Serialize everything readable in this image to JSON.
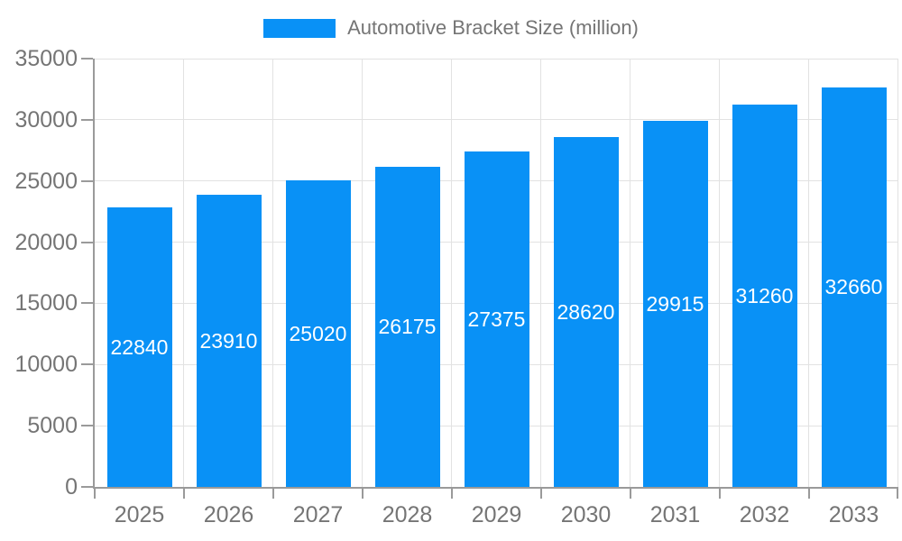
{
  "chart_data": {
    "type": "bar",
    "title": "Automotive Bracket Size (million)",
    "categories": [
      "2025",
      "2026",
      "2027",
      "2028",
      "2029",
      "2030",
      "2031",
      "2032",
      "2033"
    ],
    "values": [
      22840,
      23910,
      25020,
      26175,
      27375,
      28620,
      29915,
      31260,
      32660
    ],
    "series": [
      {
        "name": "Automotive Bracket Size (million)",
        "values": [
          22840,
          23910,
          25020,
          26175,
          27375,
          28620,
          29915,
          31260,
          32660
        ]
      }
    ],
    "xlabel": "",
    "ylabel": "",
    "ylim": [
      0,
      35000
    ],
    "yticks": [
      0,
      5000,
      10000,
      15000,
      20000,
      25000,
      30000,
      35000
    ],
    "grid": true,
    "legend_position": "top",
    "bar_labels_inside": true,
    "colors": {
      "bar": "#0991F6",
      "axis": "#9a9a9a",
      "gridline": "#e2e2e2",
      "tick_text": "#757575",
      "bar_label_text": "#ffffff",
      "background": "#ffffff"
    }
  }
}
